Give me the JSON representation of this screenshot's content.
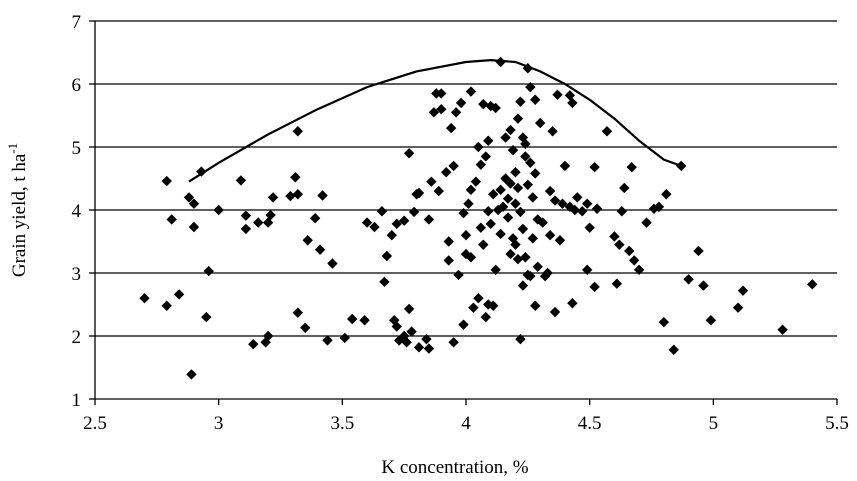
{
  "chart_data": {
    "type": "scatter",
    "title": "",
    "xlabel": "K concentration,  %",
    "ylabel_main": "Grain yield,  t ha",
    "ylabel_sup": "-1",
    "xlim": [
      2.5,
      5.5
    ],
    "ylim": [
      1,
      7
    ],
    "x_ticks": [
      2.5,
      3,
      3.5,
      4,
      4.5,
      5,
      5.5
    ],
    "x_tick_labels": [
      "2.5",
      "3",
      "3.5",
      "4",
      "4.5",
      "5",
      "5.5"
    ],
    "y_ticks": [
      1,
      2,
      3,
      4,
      5,
      6,
      7
    ],
    "y_tick_labels": [
      "1",
      "2",
      "3",
      "4",
      "5",
      "6",
      "7"
    ],
    "grid": "horizontal",
    "legend": "none",
    "marker": "diamond",
    "colors": {
      "points": "#000000",
      "curve": "#000000",
      "grid": "#000000"
    },
    "boundary_curve": {
      "x": [
        2.88,
        3.0,
        3.2,
        3.4,
        3.6,
        3.8,
        4.0,
        4.1,
        4.2,
        4.3,
        4.4,
        4.5,
        4.6,
        4.7,
        4.8,
        4.87
      ],
      "y": [
        4.45,
        4.75,
        5.2,
        5.6,
        5.95,
        6.2,
        6.35,
        6.38,
        6.35,
        6.2,
        6.0,
        5.75,
        5.45,
        5.1,
        4.8,
        4.7
      ]
    },
    "series": [
      {
        "points": [
          [
            2.7,
            2.6
          ],
          [
            2.79,
            2.48
          ],
          [
            2.79,
            4.46
          ],
          [
            2.81,
            3.85
          ],
          [
            2.84,
            2.66
          ],
          [
            2.88,
            4.2
          ],
          [
            2.89,
            1.39
          ],
          [
            2.9,
            3.73
          ],
          [
            2.9,
            4.1
          ],
          [
            2.93,
            4.61
          ],
          [
            2.95,
            2.3
          ],
          [
            2.96,
            3.03
          ],
          [
            3.0,
            4.0
          ],
          [
            3.09,
            4.47
          ],
          [
            3.11,
            3.91
          ],
          [
            3.11,
            3.7
          ],
          [
            3.14,
            1.87
          ],
          [
            3.16,
            3.8
          ],
          [
            3.19,
            1.9
          ],
          [
            3.2,
            3.8
          ],
          [
            3.2,
            2.0
          ],
          [
            3.21,
            3.92
          ],
          [
            3.22,
            4.2
          ],
          [
            3.29,
            4.22
          ],
          [
            3.32,
            5.25
          ],
          [
            3.31,
            4.52
          ],
          [
            3.32,
            4.25
          ],
          [
            3.32,
            2.37
          ],
          [
            3.35,
            2.13
          ],
          [
            3.36,
            3.52
          ],
          [
            3.39,
            3.87
          ],
          [
            3.41,
            3.37
          ],
          [
            3.42,
            4.23
          ],
          [
            3.44,
            1.93
          ],
          [
            3.46,
            3.15
          ],
          [
            3.51,
            1.97
          ],
          [
            3.54,
            2.27
          ],
          [
            3.59,
            2.25
          ],
          [
            3.6,
            3.8
          ],
          [
            3.63,
            3.73
          ],
          [
            3.66,
            3.98
          ],
          [
            3.68,
            3.27
          ],
          [
            3.67,
            2.86
          ],
          [
            3.7,
            3.6
          ],
          [
            3.71,
            2.25
          ],
          [
            3.72,
            2.15
          ],
          [
            3.72,
            3.78
          ],
          [
            3.73,
            1.93
          ],
          [
            3.75,
            3.83
          ],
          [
            3.75,
            2.0
          ],
          [
            3.76,
            1.9
          ],
          [
            3.77,
            4.9
          ],
          [
            3.77,
            2.43
          ],
          [
            3.78,
            2.07
          ],
          [
            3.79,
            3.97
          ],
          [
            3.8,
            4.25
          ],
          [
            3.81,
            1.82
          ],
          [
            3.81,
            4.27
          ],
          [
            3.84,
            1.95
          ],
          [
            3.85,
            1.8
          ],
          [
            3.85,
            3.85
          ],
          [
            3.86,
            4.45
          ],
          [
            3.87,
            5.55
          ],
          [
            3.88,
            5.85
          ],
          [
            3.89,
            4.3
          ],
          [
            3.9,
            5.85
          ],
          [
            3.9,
            5.6
          ],
          [
            3.92,
            4.6
          ],
          [
            3.93,
            3.2
          ],
          [
            3.93,
            3.5
          ],
          [
            3.94,
            5.3
          ],
          [
            3.95,
            4.7
          ],
          [
            3.95,
            1.9
          ],
          [
            3.96,
            5.55
          ],
          [
            3.97,
            2.97
          ],
          [
            3.98,
            5.7
          ],
          [
            3.99,
            2.18
          ],
          [
            3.99,
            3.95
          ],
          [
            4.0,
            3.3
          ],
          [
            4.0,
            3.6
          ],
          [
            4.01,
            4.1
          ],
          [
            4.02,
            5.88
          ],
          [
            4.02,
            4.32
          ],
          [
            4.02,
            3.25
          ],
          [
            4.03,
            2.45
          ],
          [
            4.04,
            4.45
          ],
          [
            4.05,
            2.6
          ],
          [
            4.05,
            5.0
          ],
          [
            4.06,
            4.72
          ],
          [
            4.06,
            3.72
          ],
          [
            4.07,
            5.68
          ],
          [
            4.07,
            3.45
          ],
          [
            4.08,
            2.3
          ],
          [
            4.08,
            4.85
          ],
          [
            4.09,
            3.98
          ],
          [
            4.09,
            2.5
          ],
          [
            4.09,
            5.1
          ],
          [
            4.1,
            3.78
          ],
          [
            4.1,
            5.65
          ],
          [
            4.11,
            4.25
          ],
          [
            4.11,
            2.48
          ],
          [
            4.12,
            5.62
          ],
          [
            4.12,
            3.05
          ],
          [
            4.13,
            4.0
          ],
          [
            4.14,
            4.32
          ],
          [
            4.14,
            3.62
          ],
          [
            4.14,
            6.35
          ],
          [
            4.15,
            4.05
          ],
          [
            4.16,
            5.15
          ],
          [
            4.16,
            4.5
          ],
          [
            4.17,
            3.88
          ],
          [
            4.17,
            4.18
          ],
          [
            4.18,
            5.27
          ],
          [
            4.18,
            4.42
          ],
          [
            4.18,
            3.3
          ],
          [
            4.19,
            3.55
          ],
          [
            4.19,
            4.95
          ],
          [
            4.2,
            3.45
          ],
          [
            4.2,
            4.6
          ],
          [
            4.2,
            4.1
          ],
          [
            4.21,
            3.22
          ],
          [
            4.21,
            5.45
          ],
          [
            4.21,
            4.35
          ],
          [
            4.22,
            5.72
          ],
          [
            4.22,
            1.95
          ],
          [
            4.22,
            3.97
          ],
          [
            4.23,
            2.8
          ],
          [
            4.23,
            5.15
          ],
          [
            4.23,
            3.7
          ],
          [
            4.24,
            4.85
          ],
          [
            4.24,
            5.05
          ],
          [
            4.24,
            3.25
          ],
          [
            4.25,
            6.25
          ],
          [
            4.25,
            4.4
          ],
          [
            4.25,
            2.97
          ],
          [
            4.26,
            5.95
          ],
          [
            4.26,
            4.75
          ],
          [
            4.26,
            2.95
          ],
          [
            4.27,
            4.2
          ],
          [
            4.27,
            3.55
          ],
          [
            4.28,
            5.75
          ],
          [
            4.28,
            4.58
          ],
          [
            4.28,
            2.48
          ],
          [
            4.29,
            3.85
          ],
          [
            4.29,
            3.1
          ],
          [
            4.3,
            5.38
          ],
          [
            4.31,
            3.8
          ],
          [
            4.32,
            2.95
          ],
          [
            4.33,
            3.0
          ],
          [
            4.34,
            4.3
          ],
          [
            4.34,
            3.6
          ],
          [
            4.35,
            5.25
          ],
          [
            4.36,
            2.38
          ],
          [
            4.36,
            4.15
          ],
          [
            4.37,
            5.83
          ],
          [
            4.38,
            3.52
          ],
          [
            4.39,
            4.1
          ],
          [
            4.4,
            4.7
          ],
          [
            4.42,
            5.82
          ],
          [
            4.42,
            4.05
          ],
          [
            4.43,
            5.7
          ],
          [
            4.43,
            2.52
          ],
          [
            4.44,
            4.0
          ],
          [
            4.45,
            4.2
          ],
          [
            4.47,
            3.98
          ],
          [
            4.49,
            3.05
          ],
          [
            4.49,
            4.1
          ],
          [
            4.5,
            3.72
          ],
          [
            4.52,
            4.68
          ],
          [
            4.52,
            2.78
          ],
          [
            4.53,
            4.02
          ],
          [
            4.57,
            5.25
          ],
          [
            4.6,
            3.58
          ],
          [
            4.61,
            2.83
          ],
          [
            4.62,
            3.45
          ],
          [
            4.63,
            3.98
          ],
          [
            4.64,
            4.35
          ],
          [
            4.66,
            3.35
          ],
          [
            4.67,
            4.68
          ],
          [
            4.68,
            3.2
          ],
          [
            4.7,
            3.05
          ],
          [
            4.73,
            3.8
          ],
          [
            4.76,
            4.02
          ],
          [
            4.78,
            4.05
          ],
          [
            4.8,
            2.22
          ],
          [
            4.81,
            4.25
          ],
          [
            4.84,
            1.78
          ],
          [
            4.87,
            4.7
          ],
          [
            4.9,
            2.9
          ],
          [
            4.94,
            3.35
          ],
          [
            4.96,
            2.8
          ],
          [
            4.99,
            2.25
          ],
          [
            5.1,
            2.45
          ],
          [
            5.12,
            2.72
          ],
          [
            5.28,
            2.1
          ],
          [
            5.4,
            2.82
          ]
        ]
      }
    ]
  }
}
